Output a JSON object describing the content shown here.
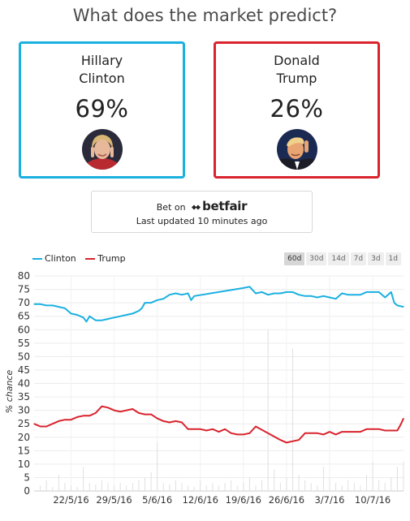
{
  "header": {
    "title": "What does the market predict?"
  },
  "candidates": [
    {
      "name_line1": "Hillary",
      "name_line2": "Clinton",
      "percent": "69%",
      "color": "#1ab0e0",
      "avatar": "clinton-photo-icon"
    },
    {
      "name_line1": "Donald",
      "name_line2": "Trump",
      "percent": "26%",
      "color": "#d9232d",
      "avatar": "trump-photo-icon"
    }
  ],
  "bet": {
    "prefix": "Bet on",
    "brand": "betfair",
    "updated": "Last updated 10 minutes ago"
  },
  "range_buttons": [
    {
      "label": "60d",
      "active": true
    },
    {
      "label": "30d",
      "active": false
    },
    {
      "label": "14d",
      "active": false
    },
    {
      "label": "7d",
      "active": false
    },
    {
      "label": "3d",
      "active": false
    },
    {
      "label": "1d",
      "active": false
    }
  ],
  "chart_data": {
    "type": "line",
    "ylabel": "% chance",
    "ylim": [
      0,
      80
    ],
    "yticks": [
      0,
      5,
      10,
      15,
      20,
      25,
      30,
      35,
      40,
      45,
      50,
      55,
      60,
      65,
      70,
      75,
      80
    ],
    "x_tick_labels": [
      "22/5/16",
      "29/5/16",
      "5/6/16",
      "12/6/16",
      "19/6/16",
      "26/6/16",
      "3/7/16",
      "10/7/16"
    ],
    "x_range_days": [
      0,
      60
    ],
    "x_tick_days": [
      6,
      13,
      20,
      27,
      34,
      41,
      48,
      55
    ],
    "grid": true,
    "legend_position": "top-left",
    "series": [
      {
        "name": "Clinton",
        "color": "#1ab0e0",
        "points": [
          [
            0,
            69.5
          ],
          [
            1,
            69.5
          ],
          [
            2,
            69
          ],
          [
            3,
            69
          ],
          [
            4,
            68.5
          ],
          [
            5,
            68
          ],
          [
            6,
            66
          ],
          [
            7,
            65.5
          ],
          [
            8,
            64.5
          ],
          [
            8.5,
            63
          ],
          [
            9,
            65
          ],
          [
            10,
            63.5
          ],
          [
            11,
            63.5
          ],
          [
            12,
            64
          ],
          [
            13,
            64.5
          ],
          [
            14,
            65
          ],
          [
            15,
            65.5
          ],
          [
            16,
            66
          ],
          [
            17,
            67
          ],
          [
            17.5,
            68
          ],
          [
            18,
            70
          ],
          [
            19,
            70
          ],
          [
            20,
            71
          ],
          [
            21,
            71.5
          ],
          [
            22,
            73
          ],
          [
            23,
            73.5
          ],
          [
            24,
            73
          ],
          [
            25,
            73.5
          ],
          [
            25.5,
            71
          ],
          [
            26,
            72.5
          ],
          [
            34,
            75.5
          ],
          [
            35,
            76
          ],
          [
            36,
            73.5
          ],
          [
            37,
            74
          ],
          [
            38,
            73
          ],
          [
            39,
            73.5
          ],
          [
            40,
            73.5
          ],
          [
            41,
            74
          ],
          [
            42,
            74
          ],
          [
            43,
            73
          ],
          [
            44,
            72.5
          ],
          [
            45,
            72.5
          ],
          [
            46,
            72
          ],
          [
            47,
            72.5
          ],
          [
            48,
            72
          ],
          [
            49,
            71.5
          ],
          [
            50,
            73.5
          ],
          [
            51,
            73
          ],
          [
            52,
            73
          ],
          [
            53,
            73
          ],
          [
            54,
            74
          ],
          [
            55,
            74
          ],
          [
            56,
            74
          ],
          [
            57,
            72
          ],
          [
            58,
            74
          ],
          [
            58.5,
            70
          ],
          [
            59,
            69
          ],
          [
            60,
            68.5
          ]
        ]
      },
      {
        "name": "Trump",
        "color": "#d9232d",
        "points": [
          [
            0,
            25
          ],
          [
            1,
            24
          ],
          [
            2,
            24
          ],
          [
            3,
            25
          ],
          [
            4,
            26
          ],
          [
            5,
            26.5
          ],
          [
            6,
            26.5
          ],
          [
            7,
            27.5
          ],
          [
            8,
            28
          ],
          [
            9,
            28
          ],
          [
            10,
            29
          ],
          [
            11,
            31.5
          ],
          [
            12,
            31
          ],
          [
            13,
            30
          ],
          [
            14,
            29.5
          ],
          [
            15,
            30
          ],
          [
            16,
            30.5
          ],
          [
            17,
            29
          ],
          [
            18,
            28.5
          ],
          [
            19,
            28.5
          ],
          [
            20,
            27
          ],
          [
            21,
            26
          ],
          [
            22,
            25.5
          ],
          [
            23,
            26
          ],
          [
            24,
            25.5
          ],
          [
            25,
            23
          ],
          [
            26,
            23
          ],
          [
            27,
            23
          ],
          [
            28,
            22.5
          ],
          [
            29,
            23
          ],
          [
            30,
            22
          ],
          [
            31,
            23
          ],
          [
            32,
            21.5
          ],
          [
            33,
            21
          ],
          [
            34,
            21
          ],
          [
            35,
            21.5
          ],
          [
            36,
            24
          ],
          [
            40,
            19
          ],
          [
            41,
            18
          ],
          [
            42,
            18.5
          ],
          [
            43,
            19
          ],
          [
            44,
            21.5
          ],
          [
            45,
            21.5
          ],
          [
            46,
            21.5
          ],
          [
            47,
            21
          ],
          [
            48,
            22
          ],
          [
            49,
            21
          ],
          [
            50,
            22
          ],
          [
            51,
            22
          ],
          [
            52,
            22
          ],
          [
            53,
            22
          ],
          [
            54,
            23
          ],
          [
            55,
            23
          ],
          [
            56,
            23
          ],
          [
            57,
            22.5
          ],
          [
            58,
            22.5
          ],
          [
            59,
            22.5
          ],
          [
            59.5,
            24.5
          ],
          [
            60,
            27
          ]
        ]
      }
    ],
    "volume_series": {
      "name": "volume",
      "color": "#e0e0e0",
      "points": [
        [
          1,
          2
        ],
        [
          2,
          4
        ],
        [
          3,
          1.5
        ],
        [
          4,
          6
        ],
        [
          5,
          3
        ],
        [
          6,
          2
        ],
        [
          7,
          1.5
        ],
        [
          8,
          9
        ],
        [
          9,
          3
        ],
        [
          10,
          2.5
        ],
        [
          11,
          4
        ],
        [
          12,
          3
        ],
        [
          13,
          2
        ],
        [
          14,
          3
        ],
        [
          15,
          2
        ],
        [
          16,
          3
        ],
        [
          17,
          4
        ],
        [
          18,
          5
        ],
        [
          19,
          7
        ],
        [
          20,
          18
        ],
        [
          21,
          3
        ],
        [
          22,
          2.5
        ],
        [
          23,
          4
        ],
        [
          24,
          3
        ],
        [
          25,
          2
        ],
        [
          26,
          1.5
        ],
        [
          27,
          4
        ],
        [
          28,
          2
        ],
        [
          29,
          3
        ],
        [
          30,
          2
        ],
        [
          31,
          3
        ],
        [
          32,
          4
        ],
        [
          33,
          2
        ],
        [
          34,
          3
        ],
        [
          35,
          5
        ],
        [
          36,
          2
        ],
        [
          37,
          4
        ],
        [
          38,
          60
        ],
        [
          39,
          8
        ],
        [
          40,
          3
        ],
        [
          41,
          5
        ],
        [
          42,
          53
        ],
        [
          43,
          6
        ],
        [
          44,
          4
        ],
        [
          45,
          3
        ],
        [
          46,
          2
        ],
        [
          47,
          9
        ],
        [
          48,
          5
        ],
        [
          49,
          3
        ],
        [
          50,
          2
        ],
        [
          51,
          4
        ],
        [
          52,
          3
        ],
        [
          53,
          2
        ],
        [
          54,
          6
        ],
        [
          55,
          11
        ],
        [
          56,
          4
        ],
        [
          57,
          3
        ],
        [
          58,
          5
        ],
        [
          59,
          9
        ],
        [
          60,
          11
        ]
      ]
    }
  }
}
